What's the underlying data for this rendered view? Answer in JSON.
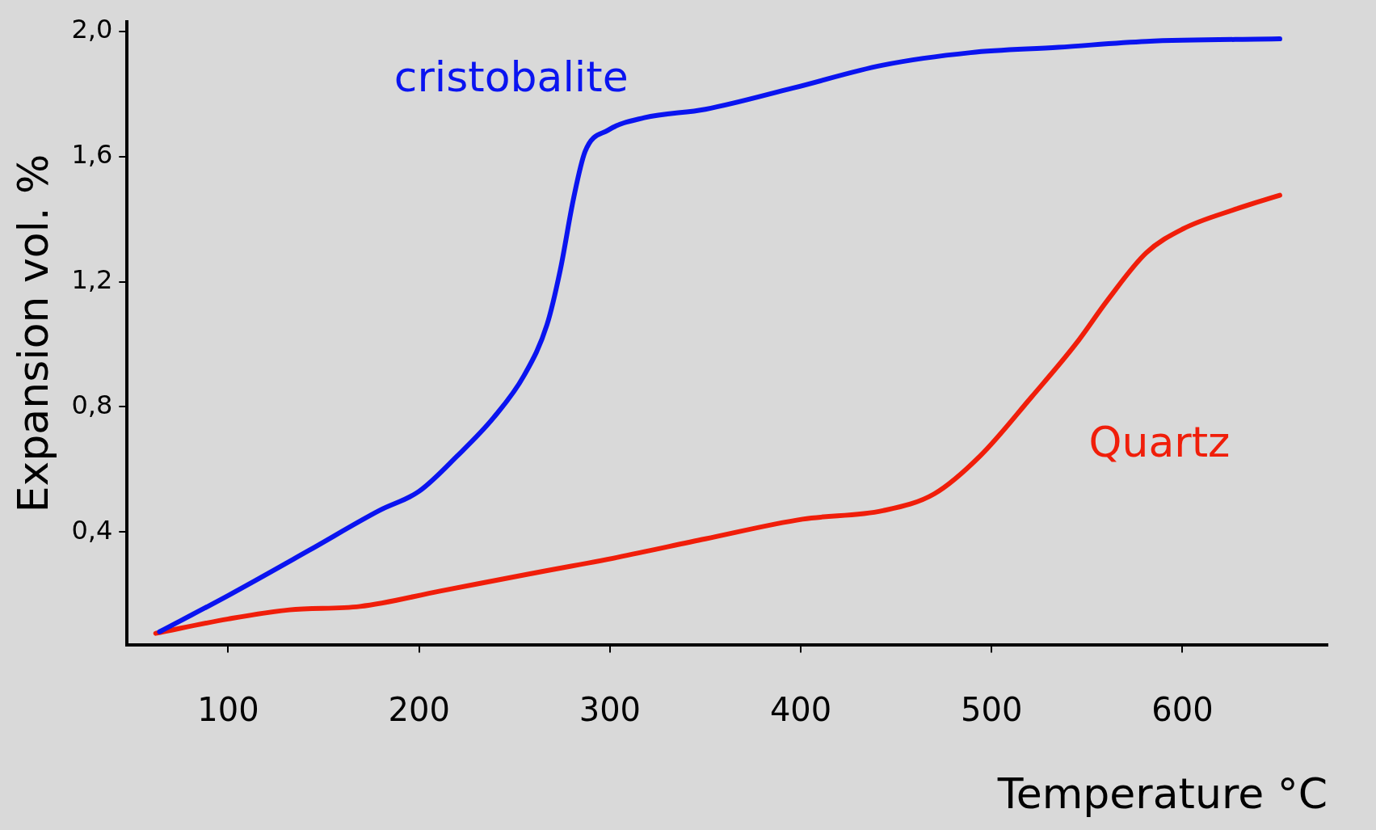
{
  "chart_data": {
    "type": "line",
    "xlabel": "Temperature °C",
    "ylabel": "Expansion vol. %",
    "xlim": [
      47,
      676
    ],
    "xticks": [
      100,
      200,
      300,
      400,
      500,
      600
    ],
    "ylim": [
      0.04,
      2.03
    ],
    "yticks": [
      {
        "value": 0.4,
        "label": "0,4"
      },
      {
        "value": 0.8,
        "label": "0,8"
      },
      {
        "value": 1.2,
        "label": "1,2"
      },
      {
        "value": 1.6,
        "label": "1,6"
      },
      {
        "value": 2.0,
        "label": "2,0"
      }
    ],
    "grid": false,
    "legend": false,
    "marker": "none",
    "line_style": "solid",
    "series": [
      {
        "name": "cristobalite",
        "color": "#0a14f0",
        "x": [
          64,
          100,
          142,
          179,
          200,
          220,
          239,
          255,
          267,
          274,
          281,
          287,
          299,
          318,
          350,
          396,
          443,
          489,
          535,
          581,
          651
        ],
        "values": [
          0.081,
          0.197,
          0.34,
          0.468,
          0.53,
          0.643,
          0.765,
          0.9,
          1.062,
          1.238,
          1.468,
          1.616,
          1.684,
          1.724,
          1.751,
          1.819,
          1.892,
          1.932,
          1.949,
          1.968,
          1.976
        ]
      },
      {
        "name": "Quartz",
        "color": "#f01e0a",
        "x": [
          62,
          100,
          132,
          169,
          211,
          257,
          304,
          350,
          401,
          443,
          470,
          494,
          521,
          544,
          561,
          581,
          600,
          628,
          651
        ],
        "values": [
          0.076,
          0.122,
          0.151,
          0.162,
          0.211,
          0.265,
          0.319,
          0.378,
          0.441,
          0.468,
          0.522,
          0.643,
          0.832,
          1.0,
          1.143,
          1.292,
          1.368,
          1.432,
          1.476
        ]
      }
    ]
  }
}
